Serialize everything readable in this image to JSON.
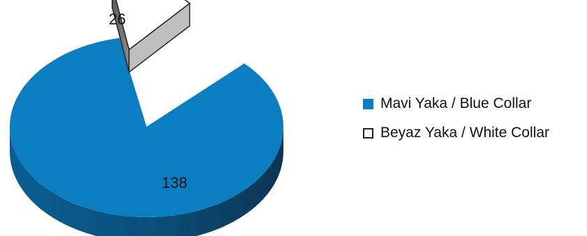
{
  "chart_data": {
    "type": "pie",
    "style": "3d-exploded",
    "categories": [
      "Mavi Yaka / Blue Collar",
      "Beyaz Yaka / White Collar"
    ],
    "values": [
      138,
      26
    ],
    "colors": [
      "#0b7ec1",
      "#ffffff"
    ],
    "legend_position": "right",
    "data_labels": [
      "138",
      "26"
    ]
  }
}
